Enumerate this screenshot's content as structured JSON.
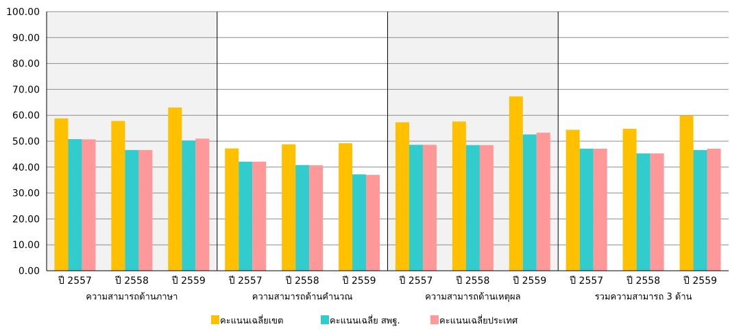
{
  "chart_data": {
    "type": "bar",
    "ylim": [
      0,
      100
    ],
    "ytick_step": 10,
    "ytick_labels": [
      "0.00",
      "10.00",
      "20.00",
      "30.00",
      "40.00",
      "50.00",
      "60.00",
      "70.00",
      "80.00",
      "90.00",
      "100.00"
    ],
    "groups": [
      {
        "name": "ความสามารถด้านภาษา",
        "shaded": true,
        "categories": [
          "ปี 2557",
          "ปี 2558",
          "ปี 2559"
        ]
      },
      {
        "name": "ความสามารถด้านคำนวณ",
        "shaded": false,
        "categories": [
          "ปี 2557",
          "ปี 2558",
          "ปี 2559"
        ]
      },
      {
        "name": "ความสามารถด้านเหตุผล",
        "shaded": true,
        "categories": [
          "ปี 2557",
          "ปี 2558",
          "ปี 2559"
        ]
      },
      {
        "name": "รวมความสามารถ 3 ด้าน",
        "shaded": false,
        "categories": [
          "ปี 2557",
          "ปี 2558",
          "ปี 2559"
        ]
      }
    ],
    "series": [
      {
        "name": "คะแนนเฉลี่ยเขต",
        "color": "#FFC000",
        "values": [
          58.8,
          57.8,
          63.0,
          47.2,
          48.8,
          49.2,
          57.3,
          57.6,
          67.3,
          54.4,
          54.8,
          59.9
        ]
      },
      {
        "name": "คะแนนเฉลี่ย สพฐ.",
        "color": "#33CCCC",
        "values": [
          50.8,
          46.6,
          50.3,
          42.1,
          40.8,
          37.2,
          48.6,
          48.5,
          52.6,
          47.1,
          45.3,
          46.6
        ]
      },
      {
        "name": "คะแนนเฉลี่ยประเทศ",
        "color": "#FF9999",
        "values": [
          50.7,
          46.6,
          51.0,
          42.1,
          40.7,
          37.0,
          48.6,
          48.5,
          53.3,
          47.1,
          45.3,
          47.1
        ]
      }
    ],
    "shade_color": "#F2F2F2",
    "grid": true,
    "legend_position": "bottom"
  }
}
